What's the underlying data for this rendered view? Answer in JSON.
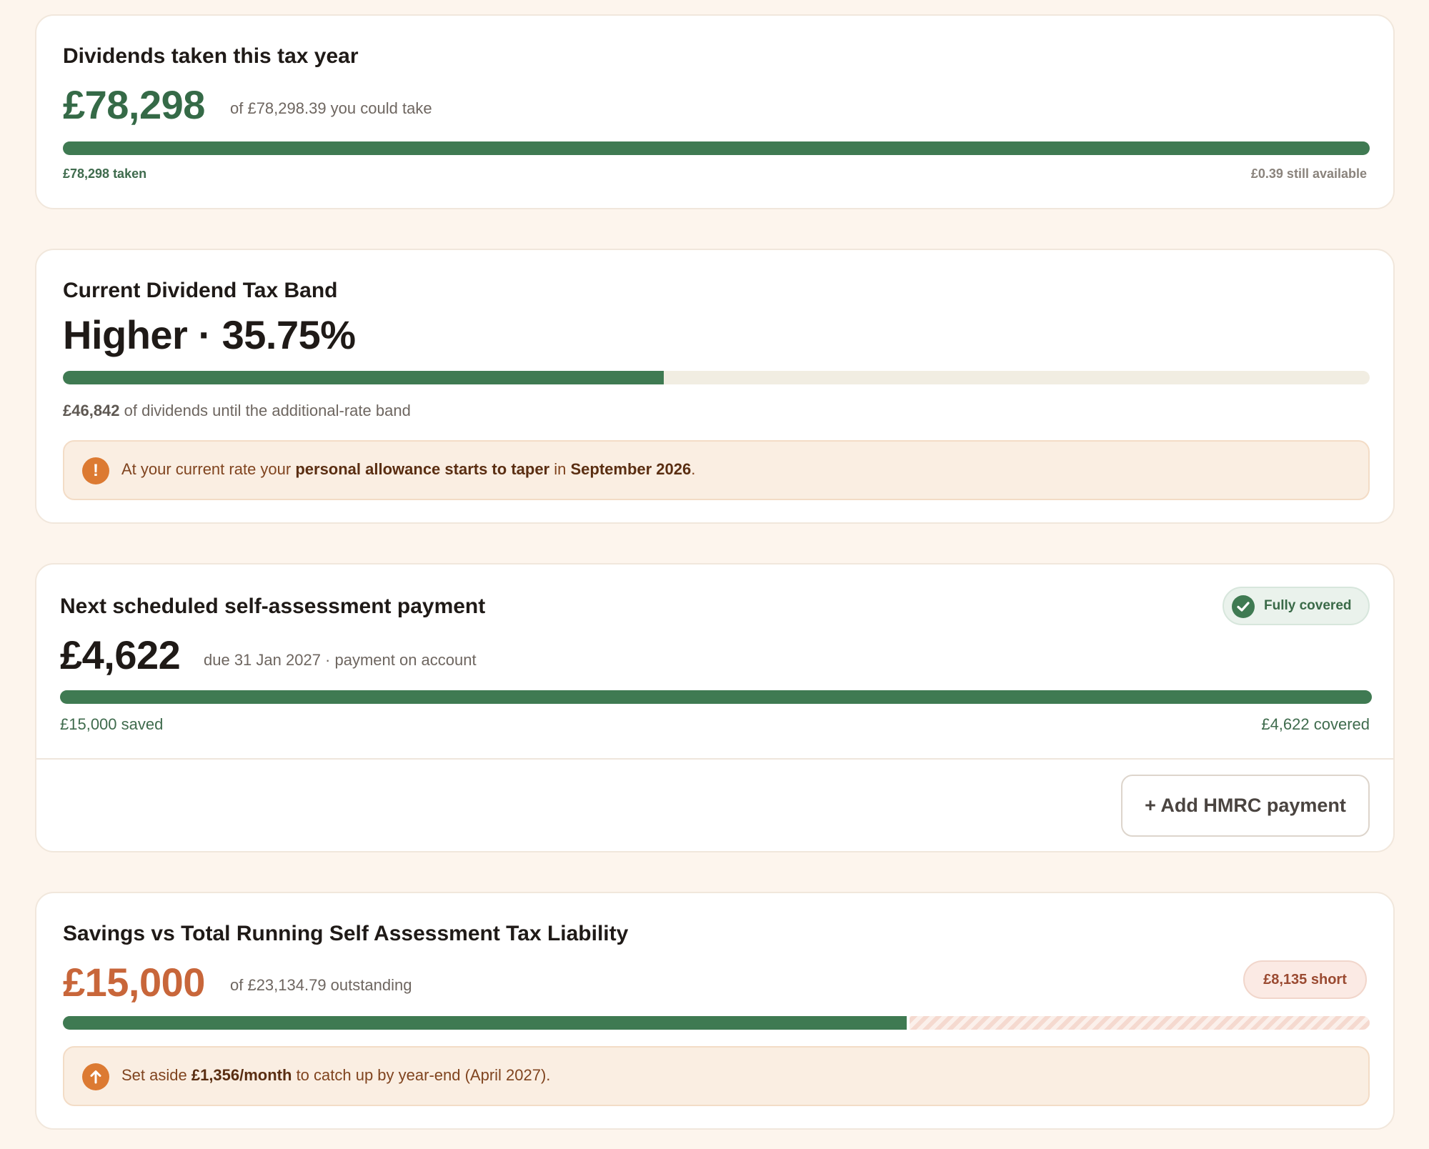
{
  "dividends": {
    "title": "Dividends taken this tax year",
    "amount": "£78,298",
    "of_text": "of £78,298.39 you could take",
    "progress_fraction": 1.0,
    "taken_label": "£78,298 taken",
    "available_label": "£0.39 still available"
  },
  "tax_band": {
    "title": "Current Dividend Tax Band",
    "band": "Higher",
    "separator": "·",
    "rate": "35.75%",
    "progress_fraction": 0.46,
    "remaining_amount": "£46,842",
    "remaining_text": " of dividends until the additional-rate band",
    "callout": {
      "icon": "exclamation-icon",
      "prefix": "At your current rate your ",
      "bold1": "personal allowance starts to taper",
      "middle": " in ",
      "bold2": "September 2026",
      "suffix": "."
    }
  },
  "payment": {
    "title": "Next scheduled self-assessment payment",
    "badge": "Fully covered",
    "badge_icon": "check-icon",
    "amount": "£4,622",
    "due_text": "due 31 Jan 2027 · payment on account",
    "progress_fraction": 1.0,
    "saved_label": "£15,000 saved",
    "covered_label": "£4,622 covered",
    "add_button": "+ Add HMRC payment"
  },
  "savings": {
    "title": "Savings vs Total Running Self Assessment Tax Liability",
    "amount": "£15,000",
    "of_text": "of £23,134.79 outstanding",
    "short_badge": "£8,135 short",
    "progress_fraction": 0.648,
    "callout": {
      "icon": "arrow-up-icon",
      "prefix": "Set aside ",
      "bold": "£1,356/month",
      "suffix": " to catch up by year-end (April 2027)."
    }
  },
  "colors": {
    "green": "#3f7a52",
    "orange": "#c8663a",
    "background": "#fdf5ed"
  }
}
